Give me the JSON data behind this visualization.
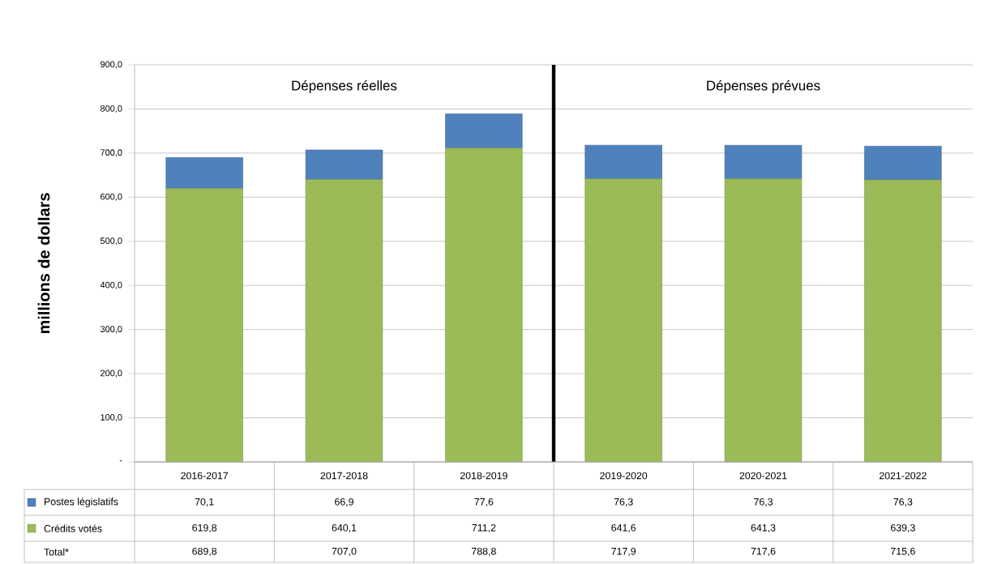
{
  "chart_data": {
    "type": "bar",
    "stacked": true,
    "ylabel": "millions de dollars",
    "categories": [
      "2016-2017",
      "2017-2018",
      "2018-2019",
      "2019-2020",
      "2020-2021",
      "2021-2022"
    ],
    "series": [
      {
        "name": "Crédits votés",
        "color": "#9bbb59",
        "values": [
          619.8,
          640.1,
          711.2,
          641.6,
          641.3,
          639.3
        ],
        "value_labels": [
          "619,8",
          "640,1",
          "711,2",
          "641,6",
          "641,3",
          "639,3"
        ]
      },
      {
        "name": "Postes législatifs",
        "color": "#4f81bd",
        "values": [
          70.1,
          66.9,
          77.6,
          76.3,
          76.3,
          76.3
        ],
        "value_labels": [
          "70,1",
          "66,9",
          "77,6",
          "76,3",
          "76,3",
          "76,3"
        ]
      }
    ],
    "ref_lines": [
      {
        "axis": "x",
        "value": "2019-2020",
        "color": "#000000"
      }
    ],
    "annotations": [
      "Dépenses réelles",
      "Dépenses prévues",
      "Total*",
      "689,8",
      "707,0",
      "788,8",
      "717,9",
      "717,6",
      "715,6"
    ],
    "ylim": [
      0,
      900
    ],
    "yticks": [
      {
        "value": 0,
        "label": "-"
      },
      {
        "value": 100,
        "label": "100,0"
      },
      {
        "value": 200,
        "label": "200,0"
      },
      {
        "value": 300,
        "label": "300,0"
      },
      {
        "value": 400,
        "label": "400,0"
      },
      {
        "value": 500,
        "label": "500,0"
      },
      {
        "value": 600,
        "label": "600,0"
      },
      {
        "value": 700,
        "label": "700,0"
      },
      {
        "value": 800,
        "label": "800,0"
      },
      {
        "value": 900,
        "label": "900,0"
      }
    ],
    "grid": "y",
    "legend": "bottom"
  }
}
